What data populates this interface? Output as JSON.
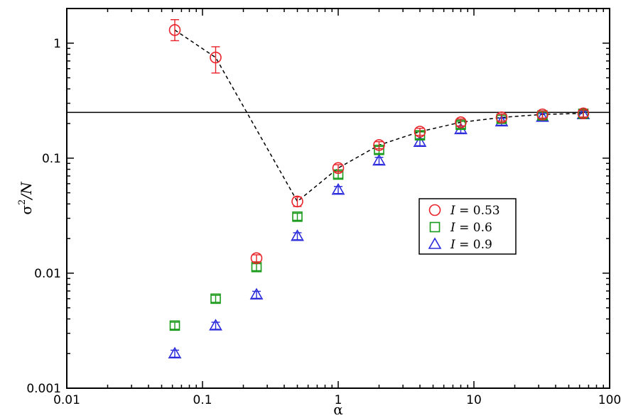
{
  "chart_data": {
    "type": "scatter",
    "title": "",
    "xlabel": "α",
    "ylabel": "σ²/N",
    "ylabel_parts": {
      "base": "σ",
      "sup": "2",
      "rest": "/N"
    },
    "xscale": "log",
    "yscale": "log",
    "xlim": [
      0.01,
      100
    ],
    "ylim": [
      0.001,
      2
    ],
    "x_tick_labels": [
      "0.01",
      "0.1",
      "1",
      "10",
      "100"
    ],
    "x_ticks": [
      0.01,
      0.1,
      1,
      10,
      100
    ],
    "y_tick_labels": [
      "0.001",
      "0.01",
      "0.1",
      "1"
    ],
    "y_ticks": [
      0.001,
      0.01,
      0.1,
      1
    ],
    "grid": false,
    "legend_position": "center-right",
    "reference_line": {
      "y": 0.25,
      "style": "solid",
      "color": "#000000"
    },
    "series": [
      {
        "name": "I = 0.53",
        "legend_var": "I",
        "legend_value": "= 0.53",
        "marker": "circle",
        "color": "#e8232a",
        "connected": true,
        "connector_style": "dashed",
        "x": [
          0.0625,
          0.125,
          0.25,
          0.5,
          1,
          2,
          4,
          8,
          16,
          32,
          64
        ],
        "y": [
          1.3,
          0.75,
          0.0135,
          0.042,
          0.082,
          0.13,
          0.17,
          0.205,
          0.226,
          0.24,
          0.245
        ],
        "err_low": [
          1.05,
          0.55,
          null,
          0.038,
          null,
          null,
          null,
          null,
          null,
          null,
          null
        ],
        "err_high": [
          1.6,
          0.93,
          null,
          0.046,
          null,
          null,
          null,
          null,
          null,
          null,
          null
        ],
        "line_points_idx": [
          0,
          1,
          3,
          4,
          5,
          6,
          7,
          8,
          9,
          10
        ]
      },
      {
        "name": "I = 0.6",
        "legend_var": "I",
        "legend_value": "= 0.6",
        "marker": "square",
        "color": "#1a9a1a",
        "connected": false,
        "x": [
          0.0625,
          0.125,
          0.25,
          0.5,
          1,
          2,
          4,
          8,
          16,
          32,
          64
        ],
        "y": [
          0.0035,
          0.006,
          0.0113,
          0.031,
          0.072,
          0.118,
          0.158,
          0.195,
          0.22,
          0.235,
          0.243
        ]
      },
      {
        "name": "I = 0.9",
        "legend_var": "I",
        "legend_value": "= 0.9",
        "marker": "triangle",
        "color": "#2b2bdc",
        "connected": false,
        "x": [
          0.0625,
          0.125,
          0.25,
          0.5,
          1,
          2,
          4,
          8,
          16,
          32,
          64
        ],
        "y": [
          0.002,
          0.0035,
          0.0065,
          0.021,
          0.053,
          0.095,
          0.138,
          0.178,
          0.208,
          0.228,
          0.24
        ]
      }
    ]
  }
}
